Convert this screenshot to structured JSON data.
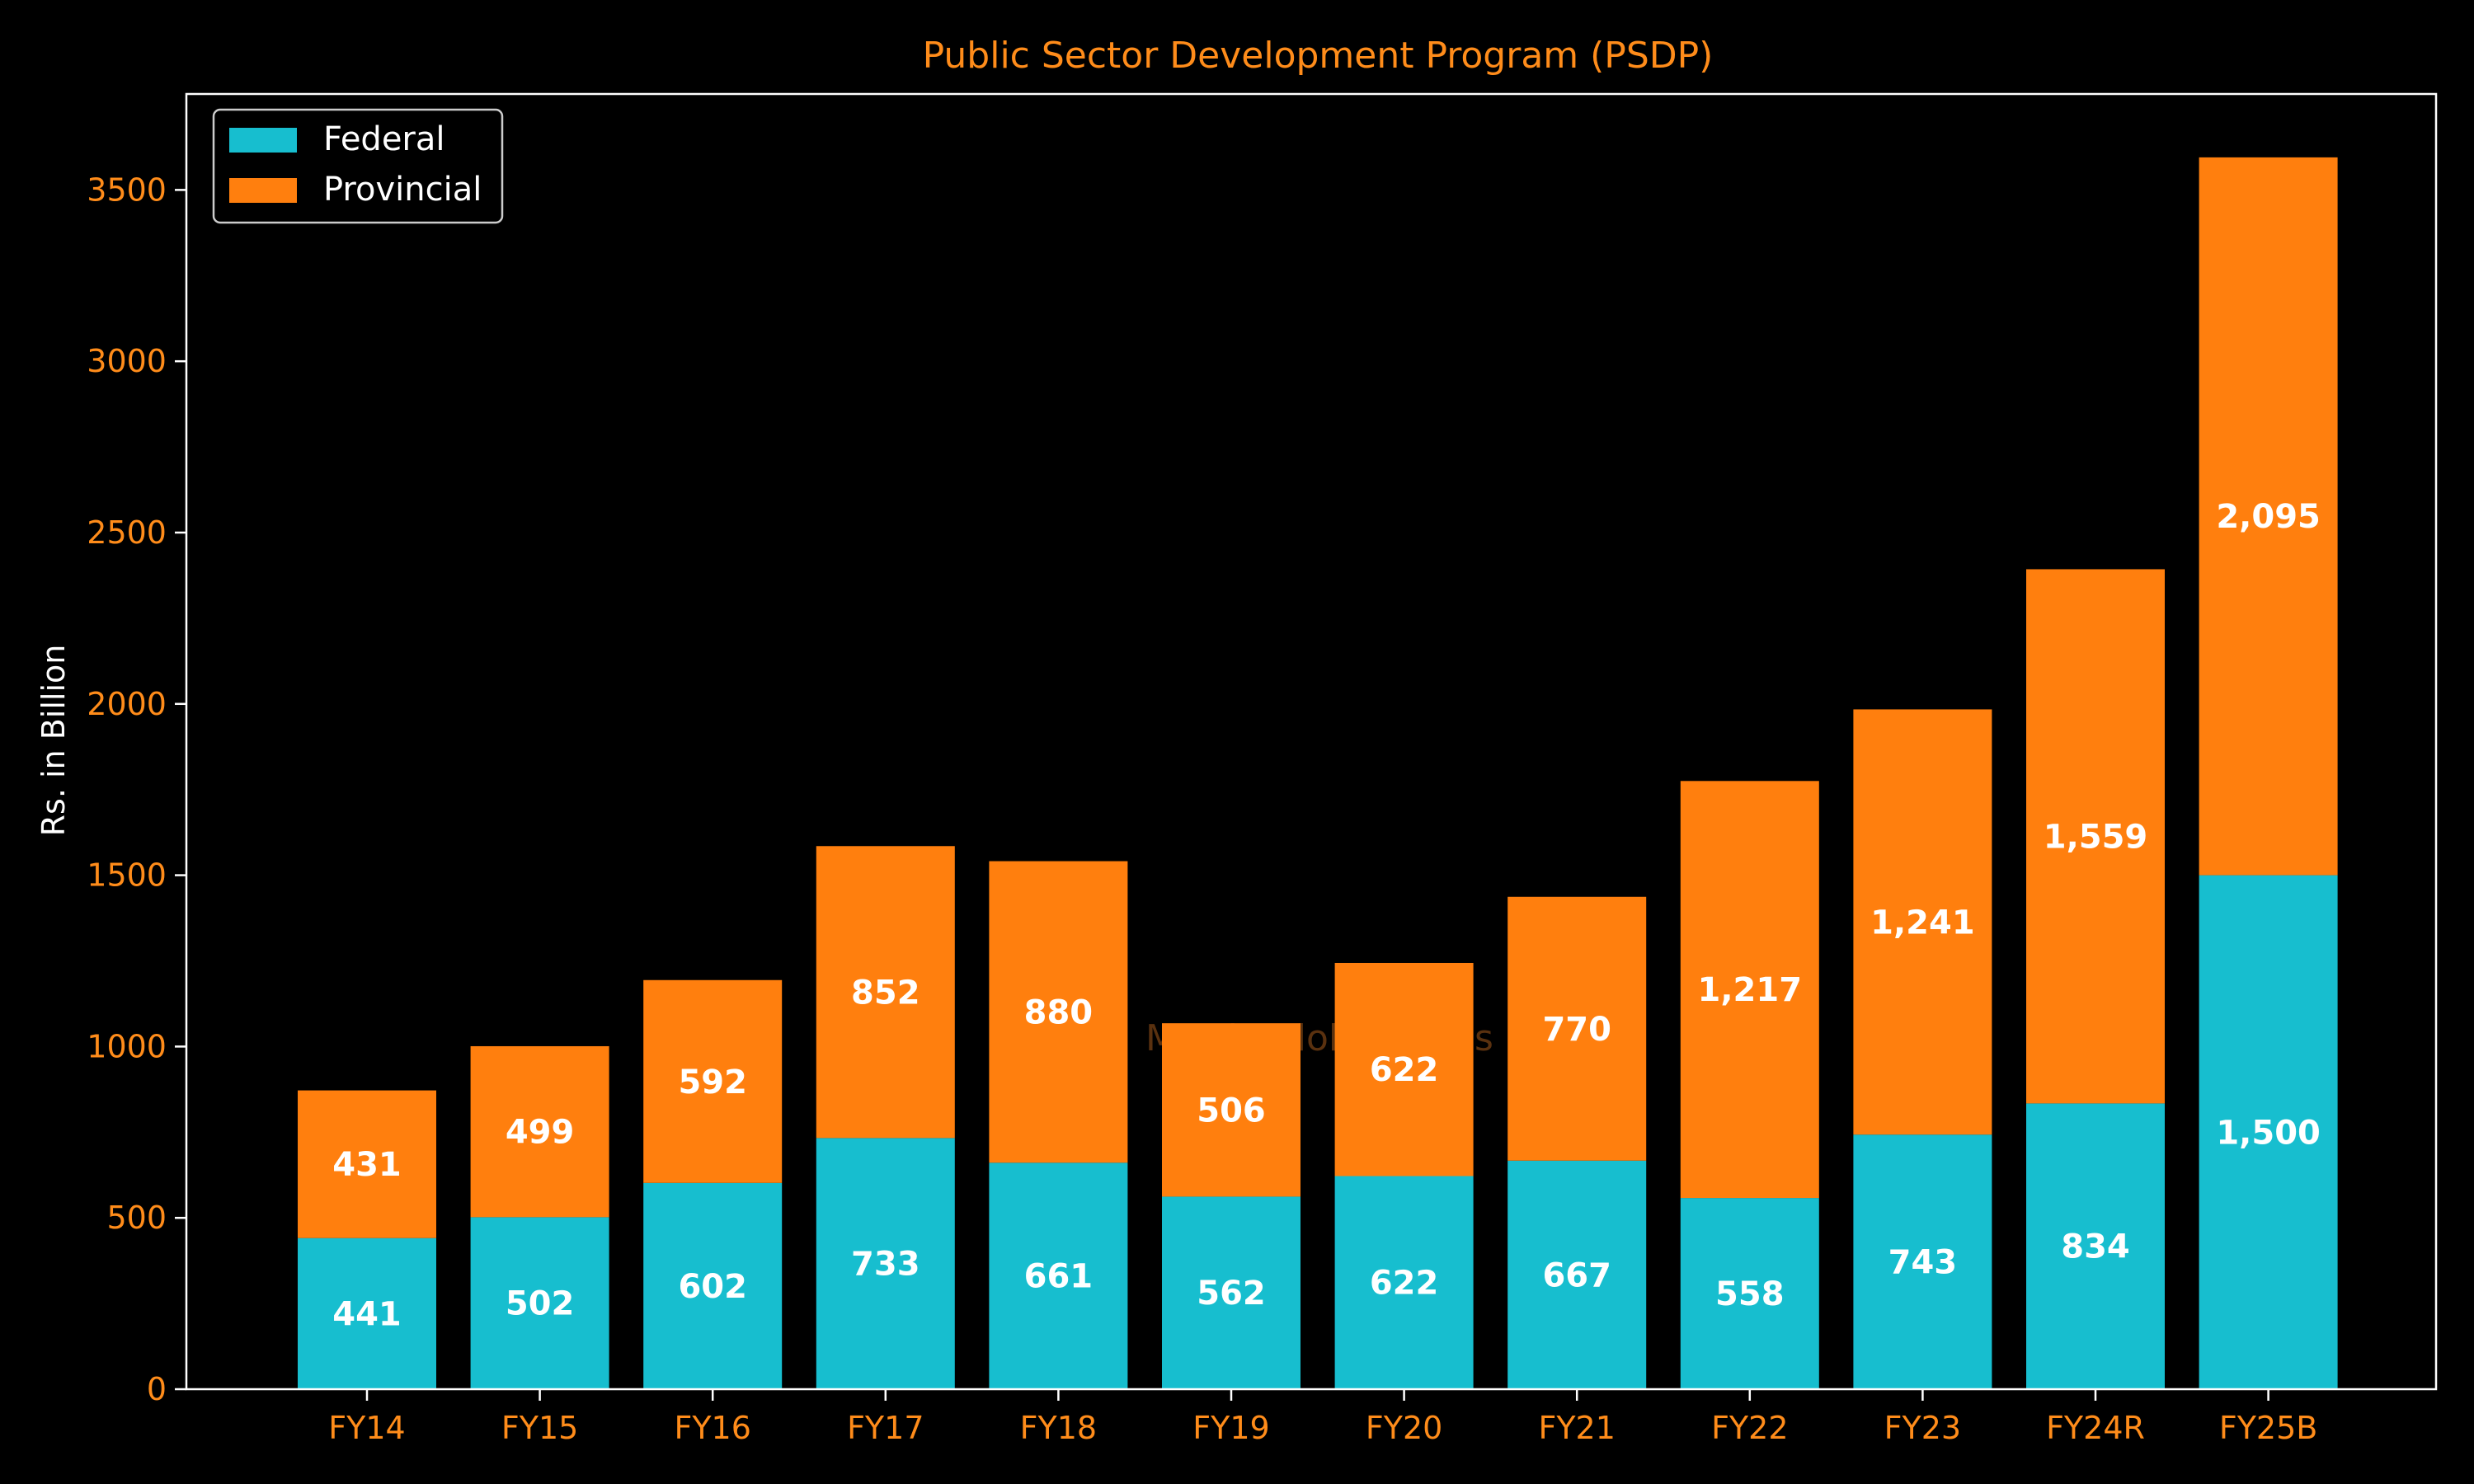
{
  "chart_data": {
    "type": "bar",
    "stacked": true,
    "title": "Public Sector Development Program (PSDP)",
    "xlabel": "",
    "ylabel": "Rs. in Billion",
    "categories": [
      "FY14",
      "FY15",
      "FY16",
      "FY17",
      "FY18",
      "FY19",
      "FY20",
      "FY21",
      "FY22",
      "FY23",
      "FY24R",
      "FY25B"
    ],
    "series": [
      {
        "name": "Federal",
        "color": "#17becf",
        "values": [
          441,
          502,
          602,
          733,
          661,
          562,
          622,
          667,
          558,
          743,
          834,
          1500
        ],
        "labels": [
          "441",
          "502",
          "602",
          "733",
          "661",
          "562",
          "622",
          "667",
          "558",
          "743",
          "834",
          "1,500"
        ]
      },
      {
        "name": "Provincial",
        "color": "#ff7f0e",
        "values": [
          431,
          499,
          592,
          852,
          880,
          506,
          622,
          770,
          1217,
          1241,
          1559,
          2095
        ],
        "labels": [
          "431",
          "499",
          "592",
          "852",
          "880",
          "506",
          "622",
          "770",
          "1,217",
          "1,241",
          "1,559",
          "2,095"
        ]
      }
    ],
    "ylim": [
      0,
      3780
    ],
    "yticks": [
      0,
      500,
      1000,
      1500,
      2000,
      2500,
      3000,
      3500
    ],
    "grid": false,
    "legend_position": "top-left",
    "watermark": "Mettis Global News"
  }
}
